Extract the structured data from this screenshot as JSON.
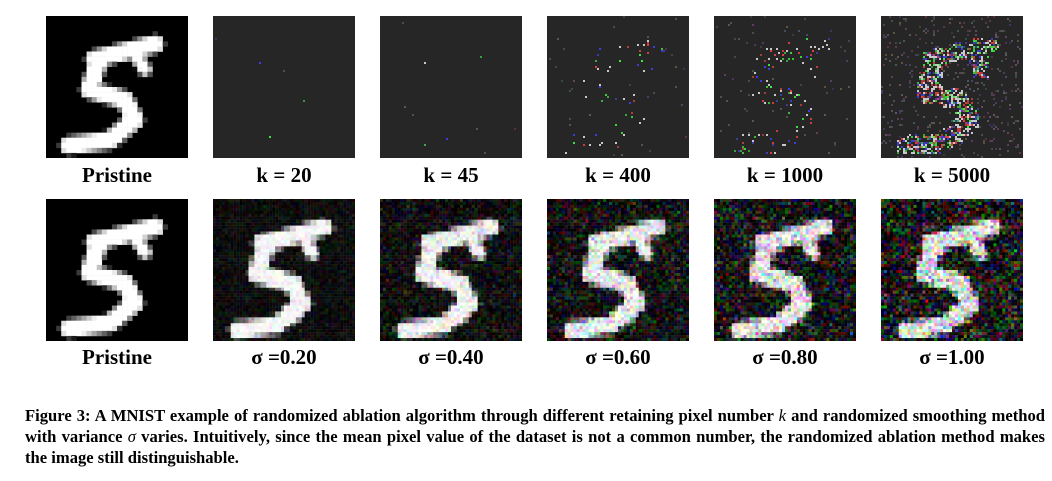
{
  "figure": {
    "rows": [
      {
        "panels": [
          {
            "label": "Pristine",
            "kind": "pristine"
          },
          {
            "label": "k = 20",
            "kind": "ablation",
            "k": 20
          },
          {
            "label": "k = 45",
            "kind": "ablation",
            "k": 45
          },
          {
            "label": "k = 400",
            "kind": "ablation",
            "k": 400
          },
          {
            "label": "k = 1000",
            "kind": "ablation",
            "k": 1000
          },
          {
            "label": "k = 5000",
            "kind": "ablation",
            "k": 5000
          }
        ]
      },
      {
        "panels": [
          {
            "label": "Pristine",
            "kind": "pristine"
          },
          {
            "label": "σ =0.20",
            "kind": "smoothing",
            "sigma": 0.2
          },
          {
            "label": "σ =0.40",
            "kind": "smoothing",
            "sigma": 0.4
          },
          {
            "label": "σ =0.60",
            "kind": "smoothing",
            "sigma": 0.6
          },
          {
            "label": "σ =0.80",
            "kind": "smoothing",
            "sigma": 0.8
          },
          {
            "label": "σ =1.00",
            "kind": "smoothing",
            "sigma": 1.0
          }
        ]
      }
    ],
    "caption": {
      "part1": "Figure 3: A MNIST example of randomized ablation algorithm through different retaining pixel number ",
      "var_k": "k",
      "part2": " and randomized smoothing method with variance ",
      "var_sigma": "σ",
      "part3": " varies. Intuitively, since the mean pixel value of the dataset is not a common number, the randomized ablation method makes the image still distinguishable."
    }
  }
}
